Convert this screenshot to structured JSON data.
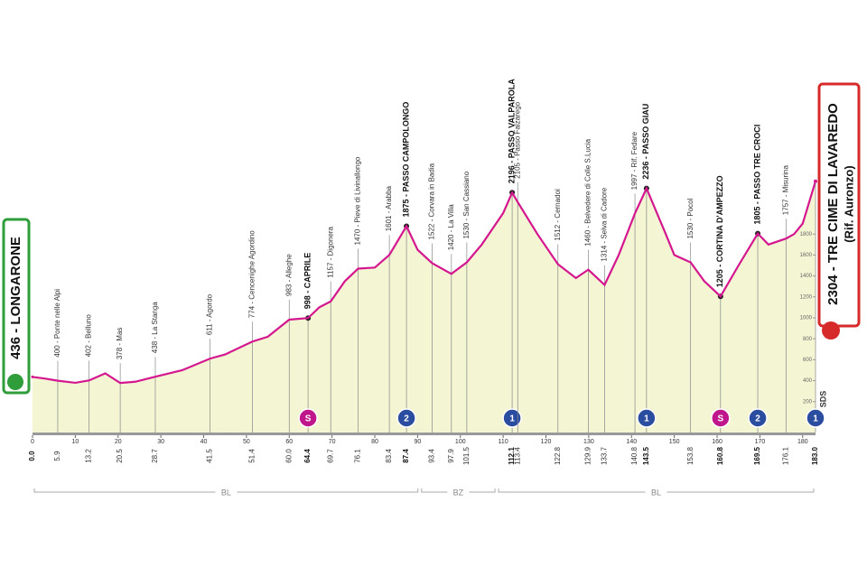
{
  "chart_data": {
    "type": "area",
    "start": {
      "label": "436 - LONGARONE",
      "altitude": 436,
      "km": {
        "value": 0,
        "label": "0.0"
      }
    },
    "finish": {
      "label": "2304 - TRE CIME DI LAVAREDO",
      "sublabel": "(Rif. Auronzo)",
      "altitude": 2304,
      "km": {
        "value": 183,
        "label": "183.0"
      },
      "badge": "1"
    },
    "profile": {
      "km": [
        0,
        3,
        5.9,
        10,
        13.2,
        17,
        20.5,
        24,
        28.7,
        35,
        41.5,
        45,
        51.4,
        55,
        60,
        64.4,
        67,
        69.7,
        73,
        76.1,
        80,
        83.4,
        87.4,
        90,
        93.4,
        97.9,
        101.5,
        105,
        110,
        112.1,
        113.4,
        118,
        122.8,
        127,
        129.9,
        133.7,
        137,
        140.8,
        143.5,
        148,
        150,
        153.8,
        157,
        160.8,
        165,
        169.5,
        172,
        176.1,
        178,
        180,
        183
      ],
      "altitudes": [
        436,
        420,
        400,
        380,
        402,
        470,
        378,
        390,
        438,
        500,
        611,
        650,
        774,
        820,
        983,
        998,
        1100,
        1157,
        1350,
        1470,
        1480,
        1601,
        1875,
        1650,
        1522,
        1420,
        1530,
        1700,
        2000,
        2196,
        2105,
        1800,
        1512,
        1380,
        1460,
        1314,
        1600,
        1997,
        2236,
        1800,
        1600,
        1530,
        1350,
        1205,
        1500,
        1805,
        1700,
        1757,
        1800,
        1900,
        2304
      ]
    },
    "waypoints": [
      {
        "km": 5.9,
        "altitude": 400,
        "label": "400 - Ponte nelle Alpi"
      },
      {
        "km": 13.2,
        "altitude": 402,
        "label": "402 - Belluno"
      },
      {
        "km": 20.5,
        "altitude": 378,
        "label": "378 - Mas"
      },
      {
        "km": 28.7,
        "altitude": 438,
        "label": "438 - La Stanga"
      },
      {
        "km": 41.5,
        "altitude": 611,
        "label": "611 - Agordo"
      },
      {
        "km": 51.4,
        "altitude": 774,
        "label": "774 - Cencenighe Agordino"
      },
      {
        "km": {
          "value": 60,
          "label": "60.0"
        },
        "altitude": 983,
        "label": "983 - Alleghe"
      },
      {
        "km": 64.4,
        "altitude": 998,
        "label": "998 - CAPRILE",
        "major": true,
        "badge": "S"
      },
      {
        "km": 69.7,
        "altitude": 1157,
        "label": "1157 - Digonera"
      },
      {
        "km": 76.1,
        "altitude": 1470,
        "label": "1470 - Pieve di Livinallongo"
      },
      {
        "km": 83.4,
        "altitude": 1601,
        "label": "1601 - Arabba"
      },
      {
        "km": 87.4,
        "altitude": 1875,
        "label": "1875 - PASSO CAMPOLONGO",
        "major": true,
        "badge": "2"
      },
      {
        "km": 93.4,
        "altitude": 1522,
        "label": "1522 - Corvara in Badia"
      },
      {
        "km": 97.9,
        "altitude": 1420,
        "label": "1420 - La Villa"
      },
      {
        "km": 101.5,
        "altitude": 1530,
        "label": "1530 - San Cassiano"
      },
      {
        "km": 112.1,
        "altitude": 2196,
        "label": "2196 - PASSO VALPAROLA",
        "major": true,
        "badge": "1"
      },
      {
        "km": 113.4,
        "altitude": 2105,
        "label": "2105 - Passo Falzarego"
      },
      {
        "km": 122.8,
        "altitude": 1512,
        "label": "1512 - Cernadoi"
      },
      {
        "km": 129.9,
        "altitude": 1460,
        "label": "1460 - Belvedere di Colle S.Lucia"
      },
      {
        "km": 133.7,
        "altitude": 1314,
        "label": "1314 - Selva di Cadore"
      },
      {
        "km": 140.8,
        "altitude": 1997,
        "label": "1997 - Rif. Fedare"
      },
      {
        "km": 143.5,
        "altitude": 2236,
        "label": "2236 - PASSO GIAU",
        "major": true,
        "badge": "1"
      },
      {
        "km": 153.8,
        "altitude": 1530,
        "label": "1530 - Pocol"
      },
      {
        "km": 160.8,
        "altitude": 1205,
        "label": "1205 - CORTINA D'AMPEZZO",
        "major": true,
        "badge": "S"
      },
      {
        "km": 169.5,
        "altitude": 1805,
        "label": "1805 - PASSO TRE CROCI",
        "major": true,
        "badge": "2"
      },
      {
        "km": 176.1,
        "altitude": 1757,
        "label": "1757 - Misurina"
      }
    ],
    "regions": [
      {
        "label": "BL",
        "from": 0,
        "to": 90.5
      },
      {
        "label": "BZ",
        "from": 90.5,
        "to": 108.5
      },
      {
        "label": "BL",
        "from": 108.5,
        "to": 183
      }
    ],
    "side_label": "SDS",
    "xlim": [
      0,
      183
    ],
    "xticks": [
      0,
      10,
      20,
      30,
      40,
      50,
      60,
      70,
      80,
      90,
      100,
      110,
      120,
      130,
      140,
      150,
      160,
      170,
      180
    ],
    "ylim": [
      -100,
      2400
    ],
    "yticks": [
      200,
      400,
      600,
      800,
      1000,
      1200,
      1400,
      1600,
      1800
    ],
    "line_color": "#d4178f",
    "fill_color": "#f3f5d3"
  }
}
